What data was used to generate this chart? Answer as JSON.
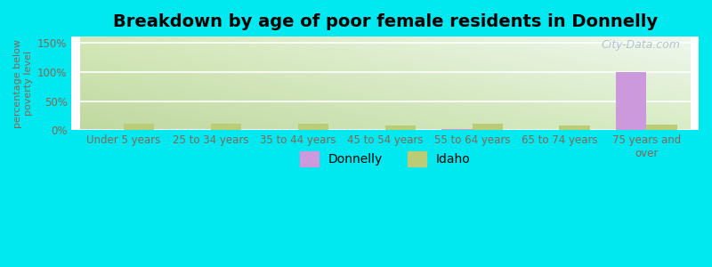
{
  "title": "Breakdown by age of poor female residents in Donnelly",
  "categories": [
    "Under 5 years",
    "25 to 34 years",
    "35 to 44 years",
    "45 to 54 years",
    "55 to 64 years",
    "65 to 74 years",
    "75 years and\nover"
  ],
  "donnelly_values": [
    0,
    0,
    0,
    0,
    2,
    0,
    100
  ],
  "idaho_values": [
    12,
    11,
    11,
    9,
    11,
    8,
    10
  ],
  "donnelly_color": "#cc99dd",
  "idaho_color": "#bbcc77",
  "bar_width": 0.35,
  "ylim": [
    0,
    160
  ],
  "yticks": [
    0,
    50,
    100,
    150
  ],
  "ytick_labels": [
    "0%",
    "50%",
    "100%",
    "150%"
  ],
  "ylabel": "percentage below\npoverty level",
  "outer_bg_color": "#00e8f0",
  "grad_top_left": "#d4e8b8",
  "grad_top_right": "#eef8e8",
  "grad_bottom_left": "#c8dca8",
  "grad_bottom_right": "#e4f4d4",
  "title_fontsize": 14,
  "axis_label_fontsize": 8,
  "tick_fontsize": 8.5,
  "tick_color": "#886655",
  "legend_fontsize": 10,
  "watermark_text": "City-Data.com",
  "grid_color": "#ffffff"
}
